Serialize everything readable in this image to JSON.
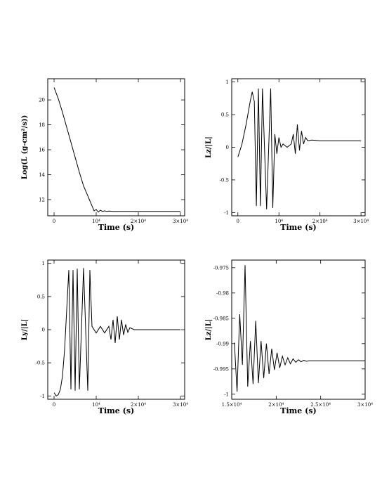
{
  "chart_data": [
    {
      "type": "line",
      "xlabel": "Time (s)",
      "ylabel": "Log(L (g-cm²/s))",
      "xlim": [
        -1500,
        31000
      ],
      "ylim": [
        10.7,
        21.7
      ],
      "xticks": [
        0,
        10000,
        20000,
        30000
      ],
      "xtick_labels": [
        "0",
        "10⁴",
        "2×10⁴",
        "3×10⁴"
      ],
      "yticks": [
        12,
        14,
        16,
        18,
        20
      ],
      "ytick_labels": [
        "12",
        "14",
        "16",
        "18",
        "20"
      ],
      "x": [
        0,
        1000,
        2000,
        3000,
        4000,
        5000,
        6000,
        7000,
        8000,
        9000,
        9500,
        10000,
        10500,
        11000,
        11500,
        12000,
        12500,
        13000,
        14000,
        16000,
        20000,
        25000,
        30000
      ],
      "y": [
        21.0,
        20.1,
        19.0,
        17.8,
        16.6,
        15.4,
        14.2,
        13.1,
        12.3,
        11.5,
        11.1,
        11.2,
        11.0,
        11.15,
        11.05,
        11.1,
        11.05,
        11.08,
        11.05,
        11.05,
        11.05,
        11.05,
        11.05
      ]
    },
    {
      "type": "line",
      "xlabel": "Time (s)",
      "ylabel": "Lz/|L|",
      "xlim": [
        -1500,
        31000
      ],
      "ylim": [
        -1.05,
        1.05
      ],
      "xticks": [
        0,
        10000,
        20000,
        30000
      ],
      "xtick_labels": [
        "0",
        "10⁴",
        "2×10⁴",
        "3×10⁴"
      ],
      "yticks": [
        -1,
        -0.5,
        0,
        0.5,
        1
      ],
      "ytick_labels": [
        "-1",
        "-0.5",
        "0",
        "0.5",
        "1"
      ],
      "x": [
        0,
        1000,
        2000,
        3000,
        3500,
        4000,
        4500,
        5000,
        5500,
        6000,
        7000,
        8000,
        8500,
        9000,
        9500,
        10000,
        10500,
        11000,
        12000,
        13000,
        13500,
        14000,
        14500,
        15000,
        15500,
        16000,
        16500,
        17000,
        18000,
        20000,
        25000,
        30000
      ],
      "y": [
        -0.15,
        0.05,
        0.35,
        0.7,
        0.85,
        0.7,
        -0.9,
        0.9,
        -0.9,
        0.9,
        -0.95,
        0.9,
        -0.93,
        0.2,
        -0.1,
        0.15,
        0.0,
        0.05,
        0.0,
        0.05,
        0.2,
        -0.1,
        0.35,
        -0.05,
        0.25,
        0.05,
        0.15,
        0.1,
        0.11,
        0.1,
        0.1,
        0.1
      ]
    },
    {
      "type": "line",
      "xlabel": "Time (s)",
      "ylabel": "Ly/|L|",
      "xlim": [
        -1500,
        31000
      ],
      "ylim": [
        -1.05,
        1.05
      ],
      "xticks": [
        0,
        10000,
        20000,
        30000
      ],
      "xtick_labels": [
        "0",
        "10⁴",
        "2×10⁴",
        "3×10⁴"
      ],
      "yticks": [
        -1,
        -0.5,
        0,
        0.5,
        1
      ],
      "ytick_labels": [
        "-1",
        "-0.5",
        "0",
        "0.5",
        "1"
      ],
      "x": [
        0,
        500,
        1000,
        1500,
        2000,
        2500,
        3000,
        3500,
        4000,
        4500,
        5000,
        5500,
        6000,
        7000,
        8000,
        8500,
        9000,
        10000,
        11000,
        12000,
        13000,
        13500,
        14000,
        14500,
        15000,
        15500,
        16000,
        16500,
        17000,
        17500,
        18000,
        19000,
        20000,
        25000,
        30000
      ],
      "y": [
        -0.95,
        -1.0,
        -0.98,
        -0.9,
        -0.7,
        -0.3,
        0.3,
        0.9,
        -0.9,
        0.9,
        -0.92,
        0.92,
        -0.9,
        0.93,
        -0.92,
        0.9,
        0.05,
        -0.05,
        0.05,
        -0.05,
        0.05,
        -0.15,
        0.15,
        -0.2,
        0.2,
        -0.15,
        0.15,
        -0.08,
        0.08,
        -0.04,
        0.03,
        0.0,
        0.0,
        0.0,
        0.0
      ]
    },
    {
      "type": "line",
      "xlabel": "Time (s)",
      "ylabel": "Lz/|L|",
      "xlim": [
        15000,
        30000
      ],
      "ylim": [
        -1.001,
        -0.9735
      ],
      "xticks": [
        15000,
        20000,
        25000,
        30000
      ],
      "xtick_labels": [
        "1.5×10⁴",
        "2×10⁴",
        "2.5×10⁴",
        "3×10⁴"
      ],
      "yticks": [
        -1,
        -0.995,
        -0.99,
        -0.985,
        -0.98,
        -0.975
      ],
      "ytick_labels": [
        "-1",
        "-0.995",
        "-0.99",
        "-0.985",
        "-0.98",
        "-0.975"
      ],
      "x": [
        15300,
        15600,
        15900,
        16200,
        16500,
        16800,
        17100,
        17400,
        17700,
        18000,
        18300,
        18600,
        18900,
        19200,
        19500,
        19800,
        20100,
        20400,
        20700,
        21000,
        21300,
        21600,
        21900,
        22200,
        22500,
        22800,
        23100,
        23400,
        23700,
        24000,
        25000,
        27000,
        30000
      ],
      "y": [
        -0.9898,
        -0.9995,
        -0.9842,
        -0.9942,
        -0.9745,
        -0.9985,
        -0.9895,
        -0.998,
        -0.9855,
        -0.9978,
        -0.9895,
        -0.9968,
        -0.99,
        -0.996,
        -0.991,
        -0.9952,
        -0.9918,
        -0.9948,
        -0.9925,
        -0.9942,
        -0.9928,
        -0.994,
        -0.993,
        -0.9937,
        -0.9932,
        -0.9936,
        -0.9933,
        -0.9935,
        -0.9934,
        -0.9934,
        -0.9934,
        -0.9934,
        -0.9934
      ]
    }
  ]
}
